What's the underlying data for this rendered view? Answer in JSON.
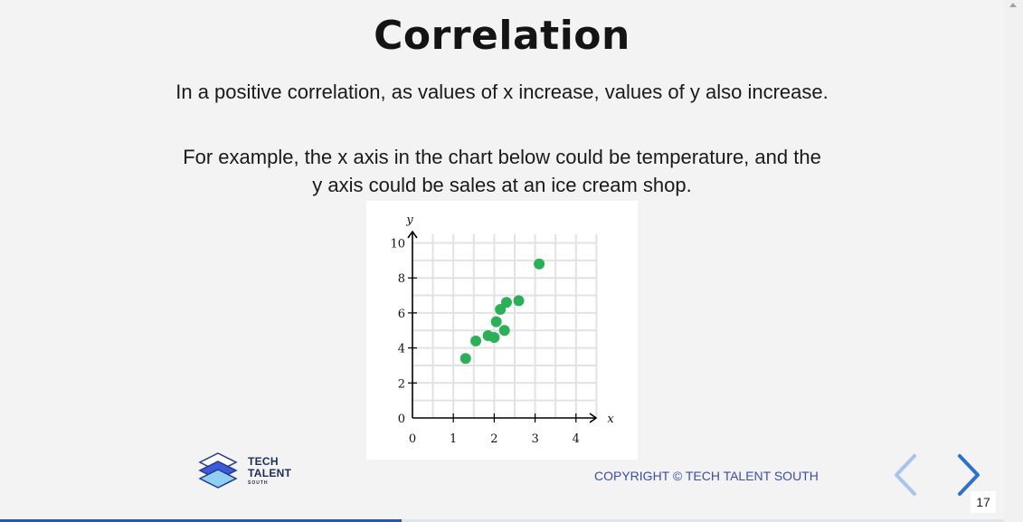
{
  "slide": {
    "title": "Correlation",
    "paragraph1": "In a positive correlation, as values of x increase, values of y also increase.",
    "paragraph2_line1": "For example,  the x axis in the chart below could be temperature, and the",
    "paragraph2_line2": "y axis could be sales at an ice cream shop.",
    "copyright": "COPYRIGHT © TECH TALENT SOUTH",
    "page_number": "17",
    "progress": 0.4
  },
  "logo": {
    "line1": "TECH",
    "line2": "TALENT",
    "line3": "SOUTH"
  },
  "nav": {
    "prev_icon": "chevron-left-icon",
    "next_icon": "chevron-right-icon"
  },
  "colors": {
    "point": "#2bb057",
    "grid": "#e2e2e2",
    "copyright": "#3b4cb0",
    "nav_prev": "#a8c4ec",
    "nav_next": "#2f6fd0",
    "progress": "#2c56b3"
  },
  "chart_data": {
    "type": "scatter",
    "xlabel": "x",
    "ylabel": "y",
    "xlim": [
      0,
      4.5
    ],
    "ylim": [
      0,
      10.5
    ],
    "x_ticks": [
      0,
      1,
      2,
      3,
      4
    ],
    "y_ticks": [
      0,
      2,
      4,
      6,
      8,
      10
    ],
    "grid": true,
    "points": [
      {
        "x": 1.3,
        "y": 3.4
      },
      {
        "x": 1.55,
        "y": 4.4
      },
      {
        "x": 1.85,
        "y": 4.7
      },
      {
        "x": 2.0,
        "y": 4.6
      },
      {
        "x": 2.05,
        "y": 5.5
      },
      {
        "x": 2.15,
        "y": 6.2
      },
      {
        "x": 2.25,
        "y": 5.0
      },
      {
        "x": 2.3,
        "y": 6.6
      },
      {
        "x": 2.6,
        "y": 6.7
      },
      {
        "x": 3.1,
        "y": 8.8
      }
    ]
  }
}
